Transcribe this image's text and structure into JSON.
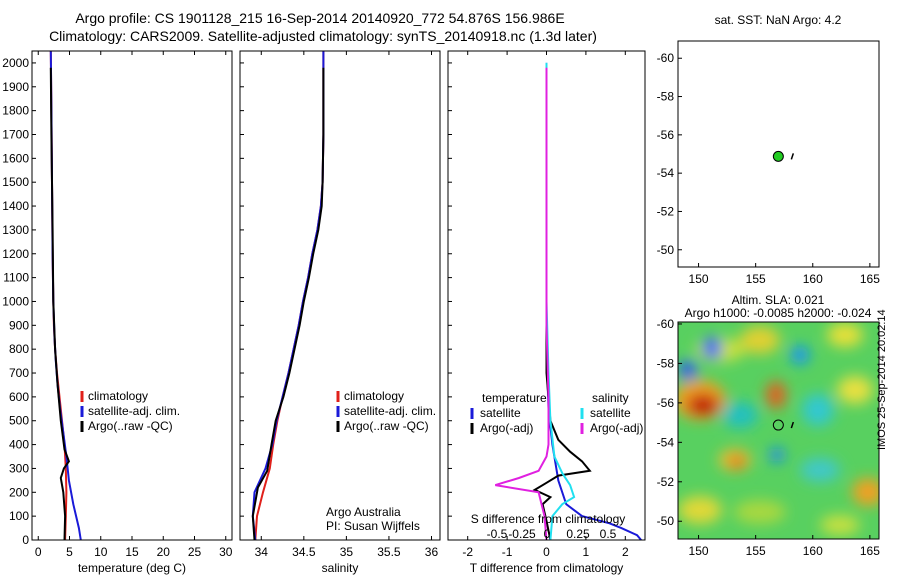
{
  "header": {
    "title_line1": "Argo profile: CS 1901128_215 16-Sep-2014 20140920_772 54.876S 156.986E",
    "title_line2": "Climatology: CARS2009. Satellite-adjusted climatology: synTS_20140918.nc (1.3d later)"
  },
  "colors": {
    "climatology": "#e0201a",
    "satellite": "#1a1ad8",
    "argo": "#000000",
    "sat_salinity": "#20e0f0",
    "argo_salinity": "#e020e0",
    "float_marker": "#22cc22"
  },
  "chart_data": [
    {
      "type": "line",
      "panel": "temperature",
      "xlabel": "temperature (deg C)",
      "ylabel": "",
      "xlim": [
        -1,
        31
      ],
      "ylim": [
        2050,
        0
      ],
      "y_reversed": true,
      "xticks": [
        0,
        5,
        10,
        15,
        20,
        25,
        30
      ],
      "yticks": [
        0,
        100,
        200,
        300,
        400,
        500,
        600,
        700,
        800,
        900,
        1000,
        1100,
        1200,
        1300,
        1400,
        1500,
        1600,
        1700,
        1800,
        1900,
        2000
      ],
      "legend": [
        "climatology",
        "satellite-adj. clim.",
        "Argo(..raw -QC)"
      ],
      "series": [
        {
          "name": "climatology",
          "color": "#e0201a",
          "x": [
            4.3,
            4.4,
            4.5,
            4.4,
            4.2,
            3.8,
            3.4,
            3.0,
            2.7,
            2.5,
            2.4,
            2.3,
            2.2,
            2.1,
            2.0
          ],
          "y": [
            0,
            100,
            200,
            300,
            400,
            500,
            600,
            700,
            800,
            900,
            1000,
            1200,
            1500,
            1800,
            2050
          ]
        },
        {
          "name": "satellite-adj. clim.",
          "color": "#1a1ad8",
          "x": [
            6.8,
            6.5,
            5.6,
            4.9,
            4.5,
            4.0,
            3.5,
            3.1,
            2.8,
            2.6,
            2.4,
            2.3,
            2.2,
            2.1,
            2.0
          ],
          "y": [
            0,
            50,
            150,
            250,
            350,
            450,
            550,
            650,
            750,
            850,
            1000,
            1200,
            1500,
            1800,
            2050
          ]
        },
        {
          "name": "Argo(..raw -QC)",
          "color": "#000000",
          "x": [
            4.2,
            4.3,
            4.0,
            3.6,
            4.1,
            4.9,
            4.2,
            3.6,
            3.1,
            2.7,
            2.4,
            2.3,
            2.1,
            2.0
          ],
          "y": [
            0,
            100,
            200,
            260,
            300,
            330,
            380,
            500,
            650,
            800,
            1000,
            1300,
            1700,
            1980
          ]
        }
      ]
    },
    {
      "type": "line",
      "panel": "salinity",
      "xlabel": "salinity",
      "xlim": [
        33.75,
        36.1
      ],
      "ylim": [
        2050,
        0
      ],
      "y_reversed": true,
      "xticks": [
        34,
        34.5,
        35,
        35.5,
        36
      ],
      "legend": [
        "climatology",
        "satellite-adj. clim.",
        "Argo(..raw -QC)"
      ],
      "annotation": [
        "Argo Australia",
        "PI: Susan Wijffels"
      ],
      "series": [
        {
          "name": "climatology",
          "color": "#e0201a",
          "x": [
            33.93,
            33.95,
            34.02,
            34.1,
            34.14,
            34.19,
            34.25,
            34.32,
            34.38,
            34.44,
            34.49,
            34.55,
            34.6,
            34.66,
            34.7,
            34.72,
            34.73,
            34.73,
            34.73
          ],
          "y": [
            0,
            100,
            200,
            300,
            400,
            500,
            600,
            700,
            800,
            900,
            1000,
            1100,
            1200,
            1300,
            1400,
            1500,
            1700,
            1900,
            2050
          ]
        },
        {
          "name": "satellite-adj. clim.",
          "color": "#1a1ad8",
          "x": [
            33.93,
            33.9,
            33.92,
            34.05,
            34.13,
            34.18,
            34.25,
            34.32,
            34.38,
            34.44,
            34.49,
            34.55,
            34.6,
            34.66,
            34.7,
            34.72,
            34.73,
            34.73,
            34.73
          ],
          "y": [
            0,
            100,
            200,
            300,
            400,
            500,
            600,
            700,
            800,
            900,
            1000,
            1100,
            1200,
            1300,
            1400,
            1500,
            1700,
            1900,
            2050
          ]
        },
        {
          "name": "Argo(..raw -QC)",
          "color": "#000000",
          "x": [
            33.92,
            33.9,
            33.96,
            34.07,
            34.12,
            34.17,
            34.26,
            34.33,
            34.39,
            34.45,
            34.5,
            34.56,
            34.61,
            34.67,
            34.71,
            34.72,
            34.73,
            34.73
          ],
          "y": [
            0,
            100,
            220,
            290,
            400,
            500,
            600,
            700,
            800,
            900,
            1000,
            1100,
            1200,
            1300,
            1400,
            1500,
            1700,
            1980
          ]
        }
      ]
    },
    {
      "type": "line",
      "panel": "differences",
      "xlabel": "T difference from climatology",
      "xlabel_top": "S difference from climatology",
      "xlim": [
        -2.5,
        2.5
      ],
      "ylim": [
        2050,
        0
      ],
      "y_reversed": true,
      "xticks": [
        -2,
        -1,
        0,
        1,
        2
      ],
      "xticklabels_S": [
        "-0.5",
        "-0.25",
        "0",
        "0.25",
        "0.5"
      ],
      "legend_groups": {
        "temperature": [
          "satellite",
          "Argo(-adj)"
        ],
        "salinity": [
          "satellite",
          "Argo(-adj)"
        ]
      },
      "series": [
        {
          "name": "satellite",
          "group": "temperature",
          "color": "#1a1ad8",
          "x": [
            2.4,
            2.3,
            1.9,
            1.6,
            0.9,
            0.5,
            0.3,
            0.15,
            0.05,
            0.02,
            0.0,
            0.0,
            0.0,
            0.0
          ],
          "y": [
            0,
            20,
            50,
            70,
            100,
            150,
            250,
            400,
            550,
            700,
            900,
            1200,
            1600,
            2000
          ]
        },
        {
          "name": "Argo(-adj)",
          "group": "temperature",
          "color": "#000000",
          "x": [
            0.1,
            0.0,
            -0.1,
            0.1,
            -0.3,
            0.0,
            0.3,
            1.1,
            0.9,
            0.6,
            0.3,
            0.1,
            0.0,
            0.0,
            0.0,
            0.0
          ],
          "y": [
            0,
            80,
            150,
            180,
            210,
            240,
            270,
            290,
            330,
            370,
            420,
            500,
            700,
            1000,
            1500,
            1980
          ]
        },
        {
          "name": "satellite",
          "group": "salinity",
          "color": "#20e0f0",
          "x": [
            0.1,
            0.15,
            0.4,
            0.7,
            0.6,
            0.4,
            0.2,
            0.1,
            0.05,
            0.0,
            0.0,
            0.0
          ],
          "y": [
            0,
            100,
            150,
            180,
            230,
            280,
            350,
            500,
            700,
            1000,
            1400,
            2000
          ]
        },
        {
          "name": "Argo(-adj)",
          "group": "salinity",
          "color": "#e020e0",
          "x": [
            0.0,
            -0.05,
            -0.2,
            -1.3,
            -0.7,
            -0.2,
            0.0,
            0.05,
            0.05,
            0.0,
            0.0,
            0.0
          ],
          "y": [
            0,
            100,
            200,
            230,
            260,
            290,
            350,
            400,
            600,
            900,
            1400,
            1980
          ]
        }
      ]
    },
    {
      "type": "scatter",
      "panel": "sst-map",
      "title": "sat. SST: NaN Argo: 4.2",
      "xlim": [
        148.2,
        165.8
      ],
      "ylim": [
        -60.9,
        -49.1
      ],
      "xticks": [
        150,
        155,
        160,
        165
      ],
      "yticks": [
        -50,
        -52,
        -54,
        -56,
        -58,
        -60
      ],
      "points": [
        {
          "x": 156.986,
          "y": -54.876,
          "label": "Argo float"
        }
      ]
    },
    {
      "type": "heatmap",
      "panel": "sla-map",
      "title_line1": "Altim. SLA: 0.021",
      "title_line2": "Argo h1000: -0.0085 h2000: -0.024",
      "xlim": [
        148.2,
        165.8
      ],
      "ylim": [
        -60.1,
        -49.1
      ],
      "xticks": [
        150,
        155,
        160,
        165
      ],
      "yticks": [
        -50,
        -52,
        -54,
        -56,
        -58,
        -60
      ],
      "points": [
        {
          "x": 156.986,
          "y": -54.876,
          "label": "Argo float"
        }
      ]
    }
  ],
  "footer": {
    "stamp": "IMOS 25-Sep-2014 20:02:14"
  }
}
